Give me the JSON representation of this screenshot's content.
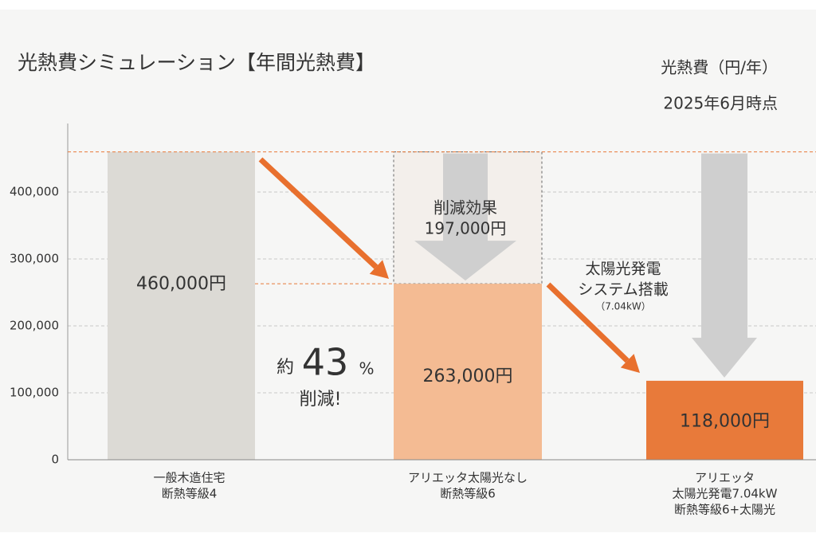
{
  "chart_data": {
    "type": "bar",
    "title": "光熱費シミュレーション【年間光熱費】",
    "unit_label": "光熱費（円/年）",
    "date_note": "2025年6月時点",
    "categories": [
      [
        "一般木造住宅",
        "断熱等級4"
      ],
      [
        "アリエッタ太陽光なし",
        "断熱等級6"
      ],
      [
        "アリエッタ",
        "太陽光発電7.04kW",
        "断熱等級6+太陽光"
      ]
    ],
    "label_colors": [
      "#333333",
      "#e87a3a",
      "#e87a3a"
    ],
    "values": [
      460000,
      263000,
      118000
    ],
    "value_labels": [
      "460,000円",
      "263,000円",
      "118,000円"
    ],
    "colors": [
      "#dcdad5",
      "#f4bb93",
      "#e87a3a"
    ],
    "ylim": [
      0,
      500000
    ],
    "yticks": [
      0,
      {
        "value": 100000,
        "label": "100,000"
      },
      {
        "value": 200000,
        "label": "200,000"
      },
      {
        "value": 300000,
        "label": "300,000"
      },
      {
        "value": 400000,
        "label": "400,000"
      }
    ],
    "grid": true,
    "annotations": {
      "effect_title": "削減効果",
      "effect_amount": "197,000円",
      "reduction_prefix": "約",
      "reduction_percent": 43,
      "reduction_unit": "%",
      "reduction_note": "削減!",
      "solar_line1": "太陽光発電",
      "solar_line2": "システム搭載",
      "solar_capacity": "（7.04kW）"
    }
  }
}
